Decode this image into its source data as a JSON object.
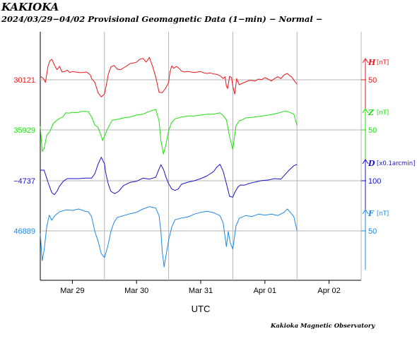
{
  "header": {
    "station": "KAKIOKA",
    "subtitle": "2024/03/29−04/02  Provisional Geomagnetic Data (1−min)  − Normal −"
  },
  "footer": {
    "credit": "Kakioka Magnetic Observatory"
  },
  "chart_data": {
    "type": "line",
    "x_unit": "days",
    "xlabel": "UTC",
    "categories": [
      "Mar 29",
      "Mar 30",
      "Mar 31",
      "Apr 01",
      "Apr 02"
    ],
    "xlim": [
      "2024-03-29T00:00",
      "2024-04-03T00:00"
    ],
    "grid": true,
    "series": [
      {
        "name": "H",
        "unit": "[nT]",
        "color": "#e8181c",
        "ref_value": "30121",
        "scale_value": "50",
        "ylim": [
          30031,
          30196
        ],
        "x": [
          0,
          0.05,
          0.08,
          0.12,
          0.15,
          0.18,
          0.22,
          0.26,
          0.3,
          0.34,
          0.38,
          0.42,
          0.46,
          0.5,
          0.55,
          0.6,
          0.66,
          0.72,
          0.78,
          0.8,
          0.85,
          0.9,
          0.95,
          1.0,
          1.03,
          1.06,
          1.1,
          1.15,
          1.2,
          1.25,
          1.3,
          1.35,
          1.4,
          1.45,
          1.5,
          1.55,
          1.6,
          1.65,
          1.7,
          1.75,
          1.8,
          1.82,
          1.85,
          1.9,
          1.95,
          2.0,
          2.02,
          2.05,
          2.08,
          2.12,
          2.16,
          2.2,
          2.25,
          2.3,
          2.35,
          2.4,
          2.45,
          2.5,
          2.55,
          2.6,
          2.65,
          2.7,
          2.75,
          2.8,
          2.85,
          2.88,
          2.9,
          2.92,
          2.95,
          2.98,
          3.0,
          3.03,
          3.06,
          3.1,
          3.15,
          3.2,
          3.25,
          3.3,
          3.35,
          3.4,
          3.45,
          3.5,
          3.55,
          3.6,
          3.65,
          3.7,
          3.75,
          3.8,
          3.85,
          3.88,
          3.92,
          3.96,
          4.0
        ],
        "y": [
          30121,
          30116,
          30108,
          30142,
          30154,
          30157,
          30145,
          30135,
          30142,
          30130,
          30131,
          30134,
          30129,
          30131,
          30130,
          30129,
          30129,
          30130,
          30124,
          30116,
          30108,
          30086,
          30077,
          30083,
          30103,
          30125,
          30141,
          30144,
          30136,
          30135,
          30139,
          30143,
          30148,
          30149,
          30151,
          30157,
          30159,
          30151,
          30161,
          30142,
          30119,
          30106,
          30087,
          30086,
          30095,
          30108,
          30130,
          30143,
          30138,
          30142,
          30138,
          30132,
          30130,
          30131,
          30130,
          30129,
          30130,
          30131,
          30128,
          30127,
          30128,
          30126,
          30125,
          30122,
          30116,
          30120,
          30100,
          30095,
          30121,
          30118,
          30100,
          30083,
          30116,
          30103,
          30106,
          30109,
          30112,
          30112,
          30111,
          30115,
          30114,
          30118,
          30115,
          30111,
          30116,
          30120,
          30116,
          30124,
          30127,
          30123,
          30119,
          30111,
          30104
        ]
      },
      {
        "name": "Z",
        "unit": "[nT]",
        "color": "#1fe00e",
        "ref_value": "35929",
        "scale_value": "50",
        "ylim": [
          35839,
          36004
        ],
        "x": [
          0,
          0.03,
          0.06,
          0.1,
          0.15,
          0.2,
          0.25,
          0.3,
          0.35,
          0.4,
          0.45,
          0.5,
          0.55,
          0.6,
          0.65,
          0.7,
          0.75,
          0.8,
          0.85,
          0.9,
          0.94,
          0.97,
          1.0,
          1.04,
          1.08,
          1.12,
          1.2,
          1.3,
          1.4,
          1.5,
          1.6,
          1.7,
          1.8,
          1.85,
          1.88,
          1.92,
          1.96,
          2.0,
          2.05,
          2.1,
          2.15,
          2.2,
          2.3,
          2.4,
          2.5,
          2.6,
          2.7,
          2.8,
          2.85,
          2.9,
          2.95,
          3.0,
          3.05,
          3.1,
          3.15,
          3.2,
          3.3,
          3.4,
          3.5,
          3.6,
          3.7,
          3.8,
          3.85,
          3.9,
          3.95,
          4.0
        ],
        "y": [
          35929,
          35876,
          35882,
          35910,
          35918,
          35935,
          35941,
          35946,
          35949,
          35958,
          35957,
          35959,
          35958,
          35959,
          35961,
          35961,
          35960,
          35949,
          35932,
          35927,
          35912,
          35899,
          35908,
          35921,
          35932,
          35942,
          35944,
          35947,
          35949,
          35953,
          35955,
          35961,
          35965,
          35941,
          35899,
          35870,
          35892,
          35920,
          35938,
          35945,
          35947,
          35949,
          35951,
          35951,
          35953,
          35955,
          35955,
          35958,
          35952,
          35943,
          35907,
          35880,
          35930,
          35941,
          35943,
          35947,
          35948,
          35950,
          35952,
          35954,
          35957,
          35961,
          35961,
          35958,
          35955,
          35931
        ]
      },
      {
        "name": "D",
        "unit": "[x0.1arcmin]",
        "color": "#1a12c7",
        "ref_value": "−4737",
        "scale_value": "100",
        "ylim": [
          -4917,
          -4587
        ],
        "x": [
          0,
          0.06,
          0.12,
          0.18,
          0.22,
          0.26,
          0.3,
          0.36,
          0.42,
          0.5,
          0.6,
          0.7,
          0.8,
          0.85,
          0.9,
          0.95,
          1.0,
          1.02,
          1.06,
          1.1,
          1.16,
          1.22,
          1.3,
          1.4,
          1.5,
          1.6,
          1.7,
          1.8,
          1.84,
          1.88,
          1.92,
          1.96,
          2.0,
          2.05,
          2.1,
          2.15,
          2.2,
          2.3,
          2.4,
          2.5,
          2.6,
          2.7,
          2.75,
          2.8,
          2.85,
          2.9,
          2.95,
          3.0,
          3.03,
          3.08,
          3.12,
          3.18,
          3.25,
          3.35,
          3.45,
          3.55,
          3.65,
          3.75,
          3.8,
          3.88,
          3.95,
          4.0
        ],
        "y": [
          -4707,
          -4707,
          -4758,
          -4803,
          -4811,
          -4797,
          -4775,
          -4754,
          -4743,
          -4743,
          -4743,
          -4741,
          -4741,
          -4722,
          -4682,
          -4652,
          -4680,
          -4718,
          -4766,
          -4797,
          -4807,
          -4797,
          -4772,
          -4759,
          -4754,
          -4741,
          -4745,
          -4737,
          -4709,
          -4684,
          -4704,
          -4738,
          -4765,
          -4787,
          -4793,
          -4787,
          -4767,
          -4758,
          -4752,
          -4743,
          -4731,
          -4713,
          -4694,
          -4682,
          -4712,
          -4764,
          -4819,
          -4822,
          -4802,
          -4778,
          -4770,
          -4771,
          -4764,
          -4757,
          -4751,
          -4749,
          -4743,
          -4745,
          -4730,
          -4706,
          -4688,
          -4683
        ]
      },
      {
        "name": "F",
        "unit": "[nT]",
        "color": "#1e88e5",
        "ref_value": "46889",
        "scale_value": "50",
        "ylim": [
          46799,
          46964
        ],
        "x": [
          0,
          0.03,
          0.06,
          0.1,
          0.14,
          0.18,
          0.22,
          0.3,
          0.4,
          0.5,
          0.6,
          0.7,
          0.75,
          0.8,
          0.85,
          0.9,
          0.95,
          1.0,
          1.05,
          1.1,
          1.15,
          1.2,
          1.3,
          1.4,
          1.5,
          1.6,
          1.7,
          1.8,
          1.85,
          1.88,
          1.9,
          1.93,
          1.96,
          2.0,
          2.05,
          2.1,
          2.2,
          2.3,
          2.4,
          2.5,
          2.6,
          2.7,
          2.8,
          2.85,
          2.88,
          2.9,
          2.93,
          2.96,
          3.0,
          3.05,
          3.1,
          3.2,
          3.3,
          3.4,
          3.5,
          3.6,
          3.7,
          3.8,
          3.85,
          3.9,
          3.95,
          4.0
        ],
        "y": [
          46876,
          46818,
          46840,
          46890,
          46915,
          46904,
          46913,
          46922,
          46926,
          46925,
          46928,
          46923,
          46922,
          46912,
          46880,
          46860,
          46833,
          46825,
          46847,
          46880,
          46900,
          46910,
          46914,
          46918,
          46921,
          46928,
          46933,
          46930,
          46914,
          46880,
          46838,
          46805,
          46830,
          46862,
          46890,
          46905,
          46909,
          46911,
          46917,
          46921,
          46923,
          46920,
          46914,
          46898,
          46868,
          46848,
          46880,
          46856,
          46843,
          46892,
          46908,
          46914,
          46912,
          46917,
          46915,
          46917,
          46914,
          46921,
          46928,
          46920,
          46912,
          46882
        ]
      }
    ]
  }
}
